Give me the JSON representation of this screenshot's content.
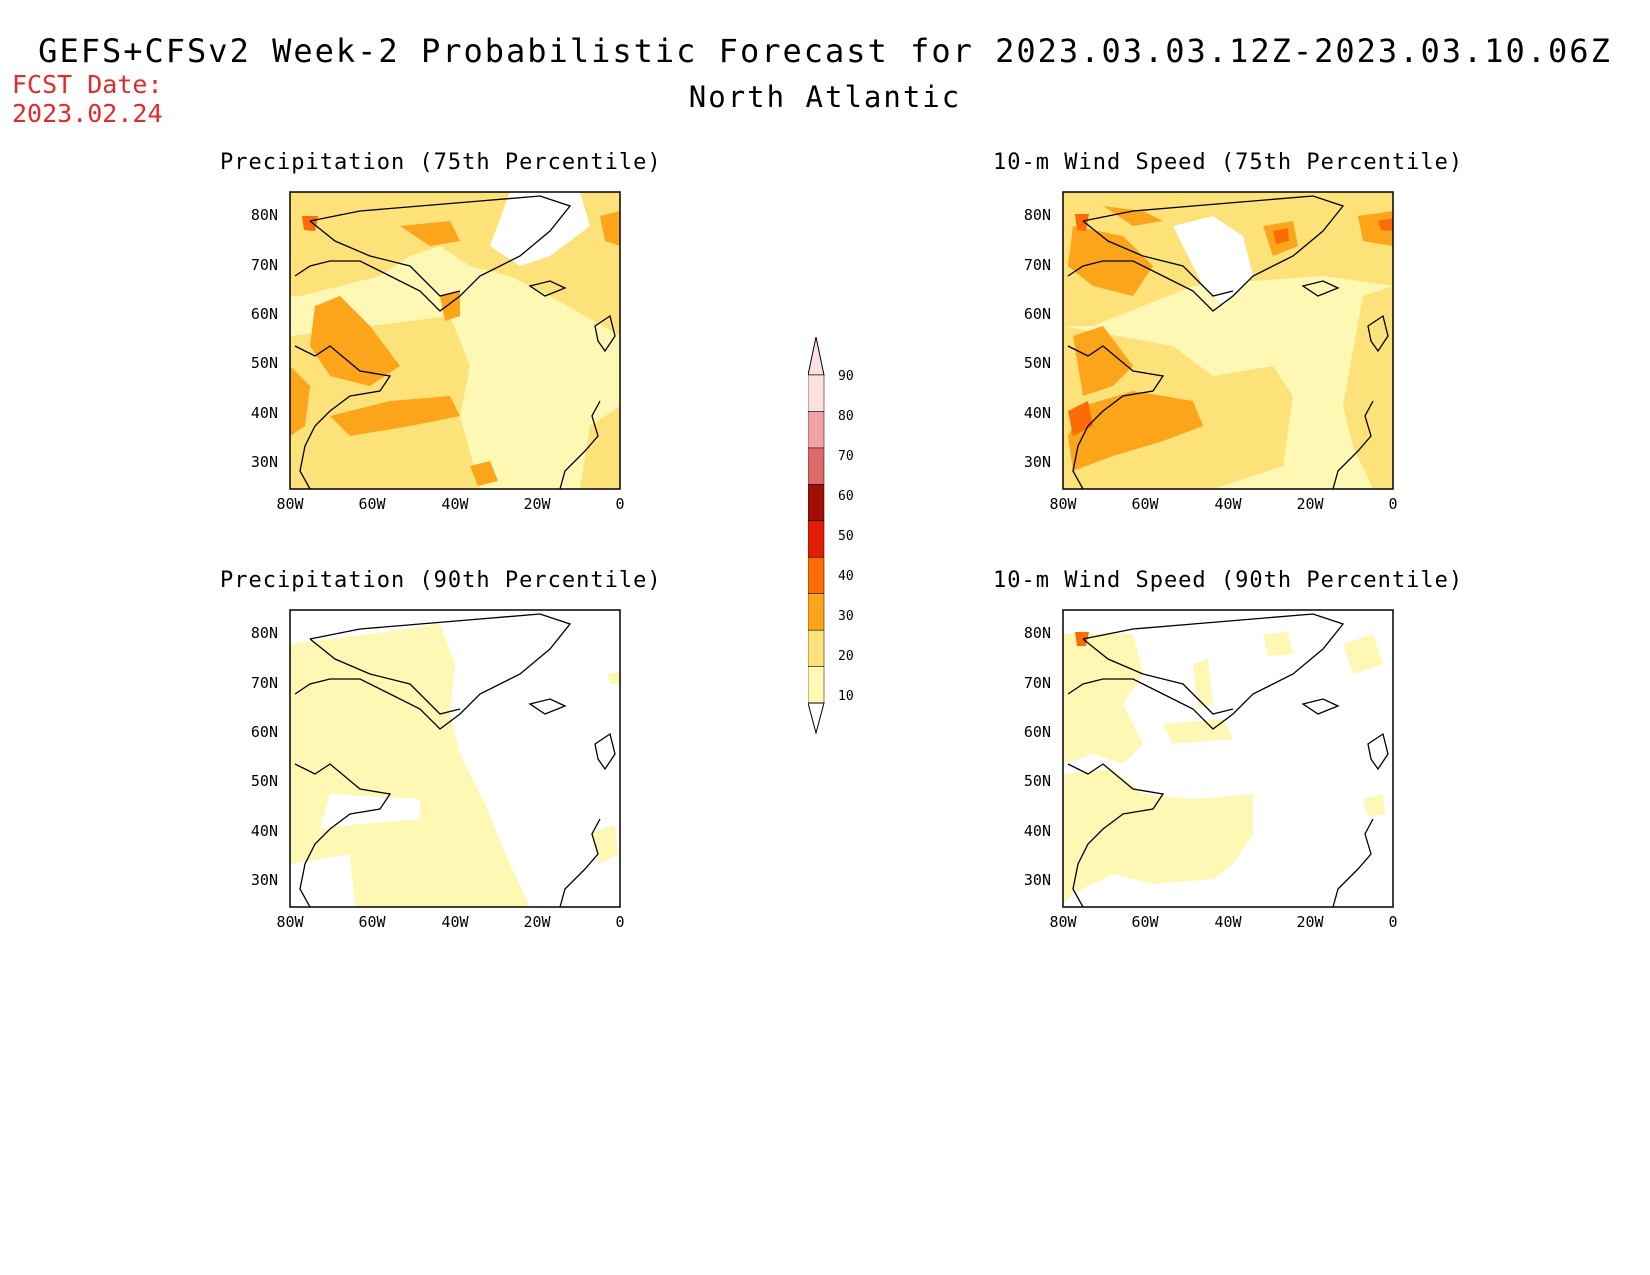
{
  "header": {
    "title": "GEFS+CFSv2 Week-2 Probabilistic Forecast for 2023.03.03.12Z-2023.03.10.06Z",
    "region": "North Atlantic",
    "fcst_date_label": "FCST Date:",
    "fcst_date_value": "2023.02.24"
  },
  "colorbar": {
    "levels": [
      "10",
      "20",
      "30",
      "40",
      "50",
      "60",
      "70",
      "80",
      "90"
    ],
    "colors": [
      "#fff8b4",
      "#fde27a",
      "#fca51a",
      "#fc6b05",
      "#e31c05",
      "#a30e05",
      "#de6a6a",
      "#f0a3a5",
      "#fde1e1"
    ]
  },
  "panels": [
    {
      "title": "Precipitation (75th Percentile)",
      "y_ticks": [
        "80N",
        "70N",
        "60N",
        "50N",
        "40N",
        "30N"
      ],
      "x_ticks": [
        "80W",
        "60W",
        "40W",
        "20W",
        "0"
      ]
    },
    {
      "title": "10-m Wind Speed (75th Percentile)",
      "y_ticks": [
        "80N",
        "70N",
        "60N",
        "50N",
        "40N",
        "30N"
      ],
      "x_ticks": [
        "80W",
        "60W",
        "40W",
        "20W",
        "0"
      ]
    },
    {
      "title": "Precipitation (90th Percentile)",
      "y_ticks": [
        "80N",
        "70N",
        "60N",
        "50N",
        "40N",
        "30N"
      ],
      "x_ticks": [
        "80W",
        "60W",
        "40W",
        "20W",
        "0"
      ]
    },
    {
      "title": "10-m Wind Speed (90th Percentile)",
      "y_ticks": [
        "80N",
        "70N",
        "60N",
        "50N",
        "40N",
        "30N"
      ],
      "x_ticks": [
        "80W",
        "60W",
        "40W",
        "20W",
        "0"
      ]
    }
  ]
}
